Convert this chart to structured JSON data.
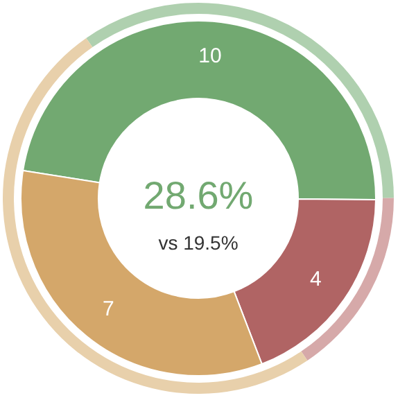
{
  "chart_data": {
    "type": "donut",
    "categories": [
      null,
      null,
      null
    ],
    "series": [
      {
        "values": [
          10,
          4,
          7
        ],
        "colors": [
          "#72a971",
          "#b06464",
          "#d4a76a"
        ],
        "value_labels": [
          "10",
          "4",
          "7"
        ]
      },
      {
        "values": [
          34.7,
          15.6,
          49.7
        ],
        "colors": [
          "#afd0af",
          "#d6a9a9",
          "#e8d0ab"
        ]
      }
    ],
    "annotations": [
      "28.6%",
      "vs 19.5%"
    ]
  }
}
